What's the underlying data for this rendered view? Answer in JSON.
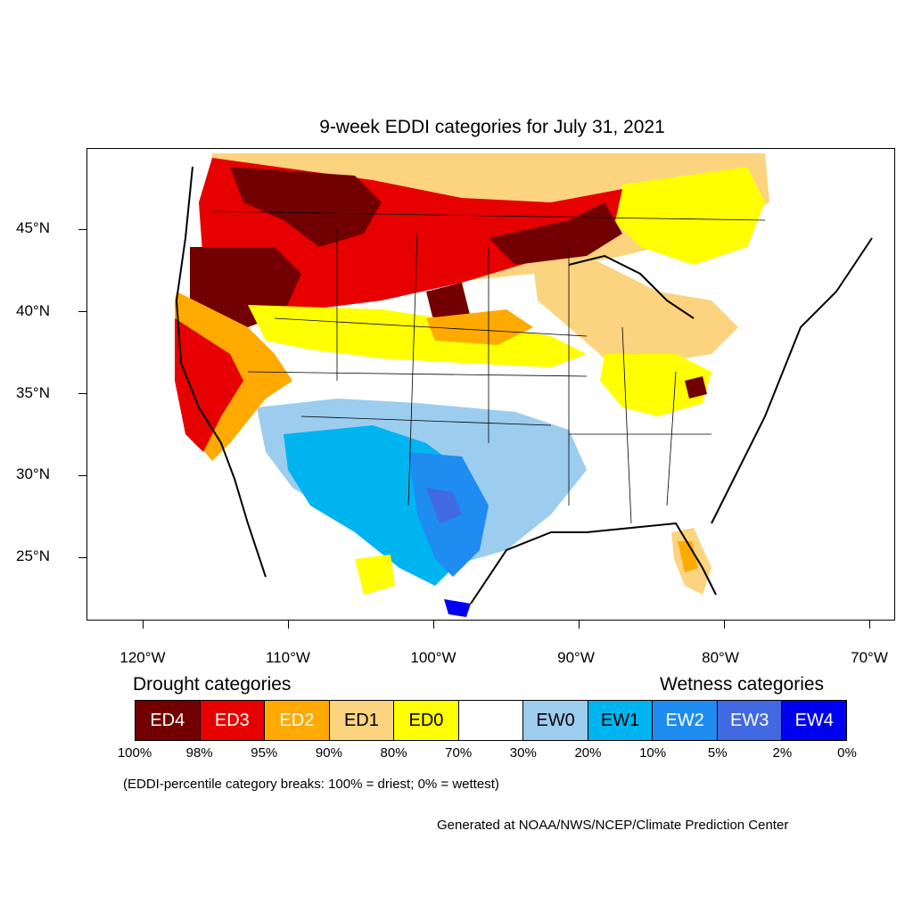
{
  "title": "9-week EDDI categories for July 31, 2021",
  "latitude_labels": [
    "45°N",
    "40°N",
    "35°N",
    "30°N",
    "25°N"
  ],
  "longitude_labels": [
    "120°W",
    "110°W",
    "100°W",
    "90°W",
    "80°W",
    "70°W"
  ],
  "drought_heading": "Drought categories",
  "wetness_heading": "Wetness categories",
  "legend": [
    {
      "label": "ED4",
      "color": "#730000",
      "text_color": "#ffffff"
    },
    {
      "label": "ED3",
      "color": "#e60000",
      "text_color": "#ffffff"
    },
    {
      "label": "ED2",
      "color": "#ffaa00",
      "text_color": "#ffffff"
    },
    {
      "label": "ED1",
      "color": "#fcd37f",
      "text_color": "#000000"
    },
    {
      "label": "ED0",
      "color": "#ffff00",
      "text_color": "#000000"
    },
    {
      "label": "",
      "color": "#ffffff",
      "text_color": "#000000"
    },
    {
      "label": "EW0",
      "color": "#9ccdef",
      "text_color": "#000000"
    },
    {
      "label": "EW1",
      "color": "#00b4f0",
      "text_color": "#000000"
    },
    {
      "label": "EW2",
      "color": "#1e8cf0",
      "text_color": "#ffffff"
    },
    {
      "label": "EW3",
      "color": "#4169e1",
      "text_color": "#ffffff"
    },
    {
      "label": "EW4",
      "color": "#0000f0",
      "text_color": "#ffffff"
    }
  ],
  "percentile_breaks": [
    "100%",
    "98%",
    "95%",
    "90%",
    "80%",
    "70%",
    "30%",
    "20%",
    "10%",
    "5%",
    "2%",
    "0%"
  ],
  "note": "(EDDI-percentile category breaks: 100% = driest; 0% = wettest)",
  "credit": "Generated at NOAA/NWS/NCEP/Climate Prediction Center"
}
